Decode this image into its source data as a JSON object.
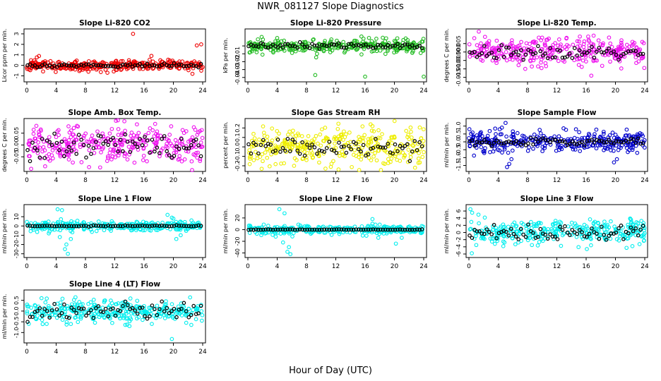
{
  "page": {
    "title": "NWR_081127  Slope Diagnostics",
    "xlabel": "Hour of Day (UTC)"
  },
  "chart_data": [
    {
      "type": "scatter",
      "title": "Slope Li-820 CO2",
      "ylabel": "Licor ppm per min.",
      "xlim": [
        0,
        24
      ],
      "xticks": [
        "0",
        "4",
        "8",
        "12",
        "16",
        "20",
        "24"
      ],
      "ylim": [
        -1.3,
        3.2
      ],
      "yticks": [
        -1,
        0,
        1,
        2,
        3
      ],
      "ytick_labels": [
        "-1",
        "0",
        "1",
        "2",
        "3"
      ],
      "color": "#ee0000",
      "center": 0.0,
      "spread": 0.25,
      "mean_jitter": 0.08,
      "seed": 11,
      "outliers": [
        [
          14.5,
          3.0
        ],
        [
          23.2,
          1.9
        ],
        [
          23.8,
          2.0
        ],
        [
          22.6,
          -0.8
        ],
        [
          11.0,
          -0.7
        ],
        [
          8.4,
          -0.6
        ],
        [
          17.0,
          0.9
        ]
      ]
    },
    {
      "type": "scatter",
      "title": "Slope Li-820 Pressure",
      "ylabel": "kPa per min.",
      "xlim": [
        0,
        24
      ],
      "xticks": [
        "0",
        "4",
        "8",
        "12",
        "16",
        "20",
        "24"
      ],
      "ylim": [
        -0.042,
        0.018
      ],
      "yticks": [
        -0.04,
        -0.03,
        -0.02,
        -0.01,
        0.0
      ],
      "ytick_labels": [
        "-0.04",
        "-0.03",
        "-0.02",
        "-0.01",
        ""
      ],
      "color": "#22bb22",
      "center": 0.0,
      "spread": 0.004,
      "mean_jitter": 0.002,
      "seed": 23,
      "outliers": [
        [
          0.3,
          -0.008
        ],
        [
          9.2,
          -0.037
        ],
        [
          16.0,
          -0.039
        ],
        [
          24.0,
          -0.039
        ],
        [
          15.5,
          0.012
        ],
        [
          4.0,
          0.01
        ]
      ]
    },
    {
      "type": "scatter",
      "title": "Slope Li-820 Temp.",
      "ylabel": "degrees C per min.",
      "xlim": [
        0,
        24
      ],
      "xticks": [
        "0",
        "4",
        "8",
        "12",
        "16",
        "20",
        "24"
      ],
      "ylim": [
        -0.016,
        0.012
      ],
      "yticks": [
        -0.015,
        -0.01,
        -0.005,
        0.0,
        0.005
      ],
      "ytick_labels": [
        "-0.015",
        "-0.010",
        "-0.005",
        "0.000",
        "0.005"
      ],
      "color": "#ee11ee",
      "center": 0.0,
      "spread": 0.004,
      "mean_jitter": 0.002,
      "seed": 37,
      "outliers": [
        [
          16.7,
          -0.014
        ],
        [
          2.2,
          0.009
        ]
      ]
    },
    {
      "type": "scatter",
      "title": "Slope Amb. Box Temp.",
      "ylabel": "degrees C per min.",
      "xlim": [
        0,
        24
      ],
      "xticks": [
        "0",
        "4",
        "8",
        "12",
        "16",
        "20",
        "24"
      ],
      "ylim": [
        -0.1,
        0.1
      ],
      "yticks": [
        -0.05,
        0.0,
        0.05
      ],
      "ytick_labels": [
        "-0.05",
        "0.00",
        "0.05"
      ],
      "color": "#ee11ee",
      "center": 0.0,
      "spread": 0.04,
      "mean_jitter": 0.03,
      "seed": 41,
      "outliers": [
        [
          10.0,
          -0.095
        ],
        [
          2.5,
          -0.09
        ]
      ]
    },
    {
      "type": "scatter",
      "title": "Slope Gas Stream RH",
      "ylabel": "percent per min.",
      "xlim": [
        0,
        24
      ],
      "xticks": [
        "0",
        "4",
        "8",
        "12",
        "16",
        "20",
        "24"
      ],
      "ylim": [
        -0.23,
        0.27
      ],
      "yticks": [
        -0.2,
        -0.1,
        0.0,
        0.1,
        0.2
      ],
      "ytick_labels": [
        "-0.2",
        "-0.1",
        "0.0",
        "0.1",
        "0.2"
      ],
      "color": "#eeee00",
      "center": 0.0,
      "spread": 0.1,
      "mean_jitter": 0.05,
      "seed": 53,
      "outliers": [
        [
          17.0,
          0.22
        ],
        [
          6.3,
          -0.2
        ]
      ]
    },
    {
      "type": "scatter",
      "title": "Slope Sample Flow",
      "ylabel": "ml/min per min.",
      "xlim": [
        0,
        24
      ],
      "xticks": [
        "0",
        "4",
        "8",
        "12",
        "16",
        "20",
        "24"
      ],
      "ylim": [
        -1.7,
        1.3
      ],
      "yticks": [
        -1.5,
        -1.0,
        -0.5,
        0.0,
        0.5,
        1.0
      ],
      "ytick_labels": [
        "-1.5",
        "-1.0",
        "-0.5",
        "0.0",
        "0.5",
        "1.0"
      ],
      "color": "#0000cc",
      "center": 0.0,
      "spread": 0.3,
      "mean_jitter": 0.1,
      "seed": 67,
      "outliers": [
        [
          5.0,
          1.2
        ],
        [
          5.2,
          -1.6
        ],
        [
          5.5,
          -1.4
        ],
        [
          5.8,
          -1.1
        ],
        [
          4.2,
          0.8
        ],
        [
          4.5,
          0.9
        ],
        [
          19.8,
          -1.3
        ],
        [
          20.2,
          -1.1
        ]
      ]
    },
    {
      "type": "scatter",
      "title": "Slope Line 1 Flow",
      "ylabel": "ml/min per min.",
      "xlim": [
        0,
        24
      ],
      "xticks": [
        "0",
        "4",
        "8",
        "12",
        "16",
        "20",
        "24"
      ],
      "ylim": [
        -31,
        20
      ],
      "yticks": [
        -30,
        -20,
        -10,
        0,
        10
      ],
      "ytick_labels": [
        "-30",
        "-20",
        "-10",
        "0",
        "10"
      ],
      "color": "#00eeee",
      "center": 0.0,
      "spread": 2.5,
      "mean_jitter": 0.3,
      "seed": 71,
      "outliers": [
        [
          4.2,
          18
        ],
        [
          4.8,
          17
        ],
        [
          4.5,
          -12
        ],
        [
          5.2,
          -25
        ],
        [
          5.6,
          -30
        ],
        [
          5.4,
          -20
        ],
        [
          3.0,
          -8
        ],
        [
          6.0,
          -14
        ],
        [
          19.2,
          12
        ],
        [
          19.8,
          9
        ],
        [
          20.4,
          -14
        ],
        [
          21.0,
          -10
        ],
        [
          20.0,
          8
        ]
      ]
    },
    {
      "type": "scatter",
      "title": "Slope Line 2 Flow",
      "ylabel": "ml/min per min.",
      "xlim": [
        0,
        24
      ],
      "xticks": [
        "0",
        "4",
        "8",
        "12",
        "16",
        "20",
        "24"
      ],
      "ylim": [
        -43,
        38
      ],
      "yticks": [
        -40,
        -20,
        0,
        20
      ],
      "ytick_labels": [
        "-40",
        "-20",
        "0",
        "20"
      ],
      "color": "#00eeee",
      "center": 0.0,
      "spread": 3.5,
      "mean_jitter": 0.3,
      "seed": 83,
      "outliers": [
        [
          4.3,
          35
        ],
        [
          5.0,
          28
        ],
        [
          4.8,
          -22
        ],
        [
          5.4,
          -38
        ],
        [
          5.8,
          -42
        ],
        [
          5.6,
          -30
        ],
        [
          3.8,
          -12
        ],
        [
          17.0,
          18
        ],
        [
          17.8,
          -14
        ],
        [
          20.2,
          -24
        ],
        [
          21.0,
          -14
        ]
      ]
    },
    {
      "type": "scatter",
      "title": "Slope Line 3 Flow",
      "ylabel": "ml/min per min.",
      "xlim": [
        0,
        24
      ],
      "xticks": [
        "0",
        "4",
        "8",
        "12",
        "16",
        "20",
        "24"
      ],
      "ylim": [
        -6.2,
        7
      ],
      "yticks": [
        -6,
        -4,
        -2,
        0,
        2,
        4,
        6
      ],
      "ytick_labels": [
        "-6",
        "-4",
        "-2",
        "0",
        "2",
        "4",
        "6"
      ],
      "color": "#00eeee",
      "center": 0.0,
      "spread": 1.8,
      "mean_jitter": 1.0,
      "seed": 97,
      "outliers": [
        [
          0.2,
          6.5
        ],
        [
          0.4,
          -5.8
        ],
        [
          1.0,
          -3.5
        ],
        [
          1.3,
          5.0
        ],
        [
          8.6,
          -3.5
        ]
      ]
    },
    {
      "type": "scatter",
      "title": "Slope Line 4 (LT) Flow",
      "ylabel": "ml/min per min.",
      "xlim": [
        0,
        24
      ],
      "xticks": [
        "0",
        "4",
        "8",
        "12",
        "16",
        "20",
        "24"
      ],
      "ylim": [
        -1.35,
        0.85
      ],
      "yticks": [
        -1.0,
        -0.5,
        0.0,
        0.5
      ],
      "ytick_labels": [
        "-1.0",
        "-0.5",
        "0.0",
        "0.5"
      ],
      "color": "#00eeee",
      "center": 0.0,
      "spread": 0.25,
      "mean_jitter": 0.2,
      "seed": 101,
      "outliers": [
        [
          19.8,
          -1.3
        ],
        [
          6.0,
          -0.6
        ],
        [
          14.0,
          -0.7
        ],
        [
          2.0,
          0.6
        ]
      ]
    }
  ]
}
